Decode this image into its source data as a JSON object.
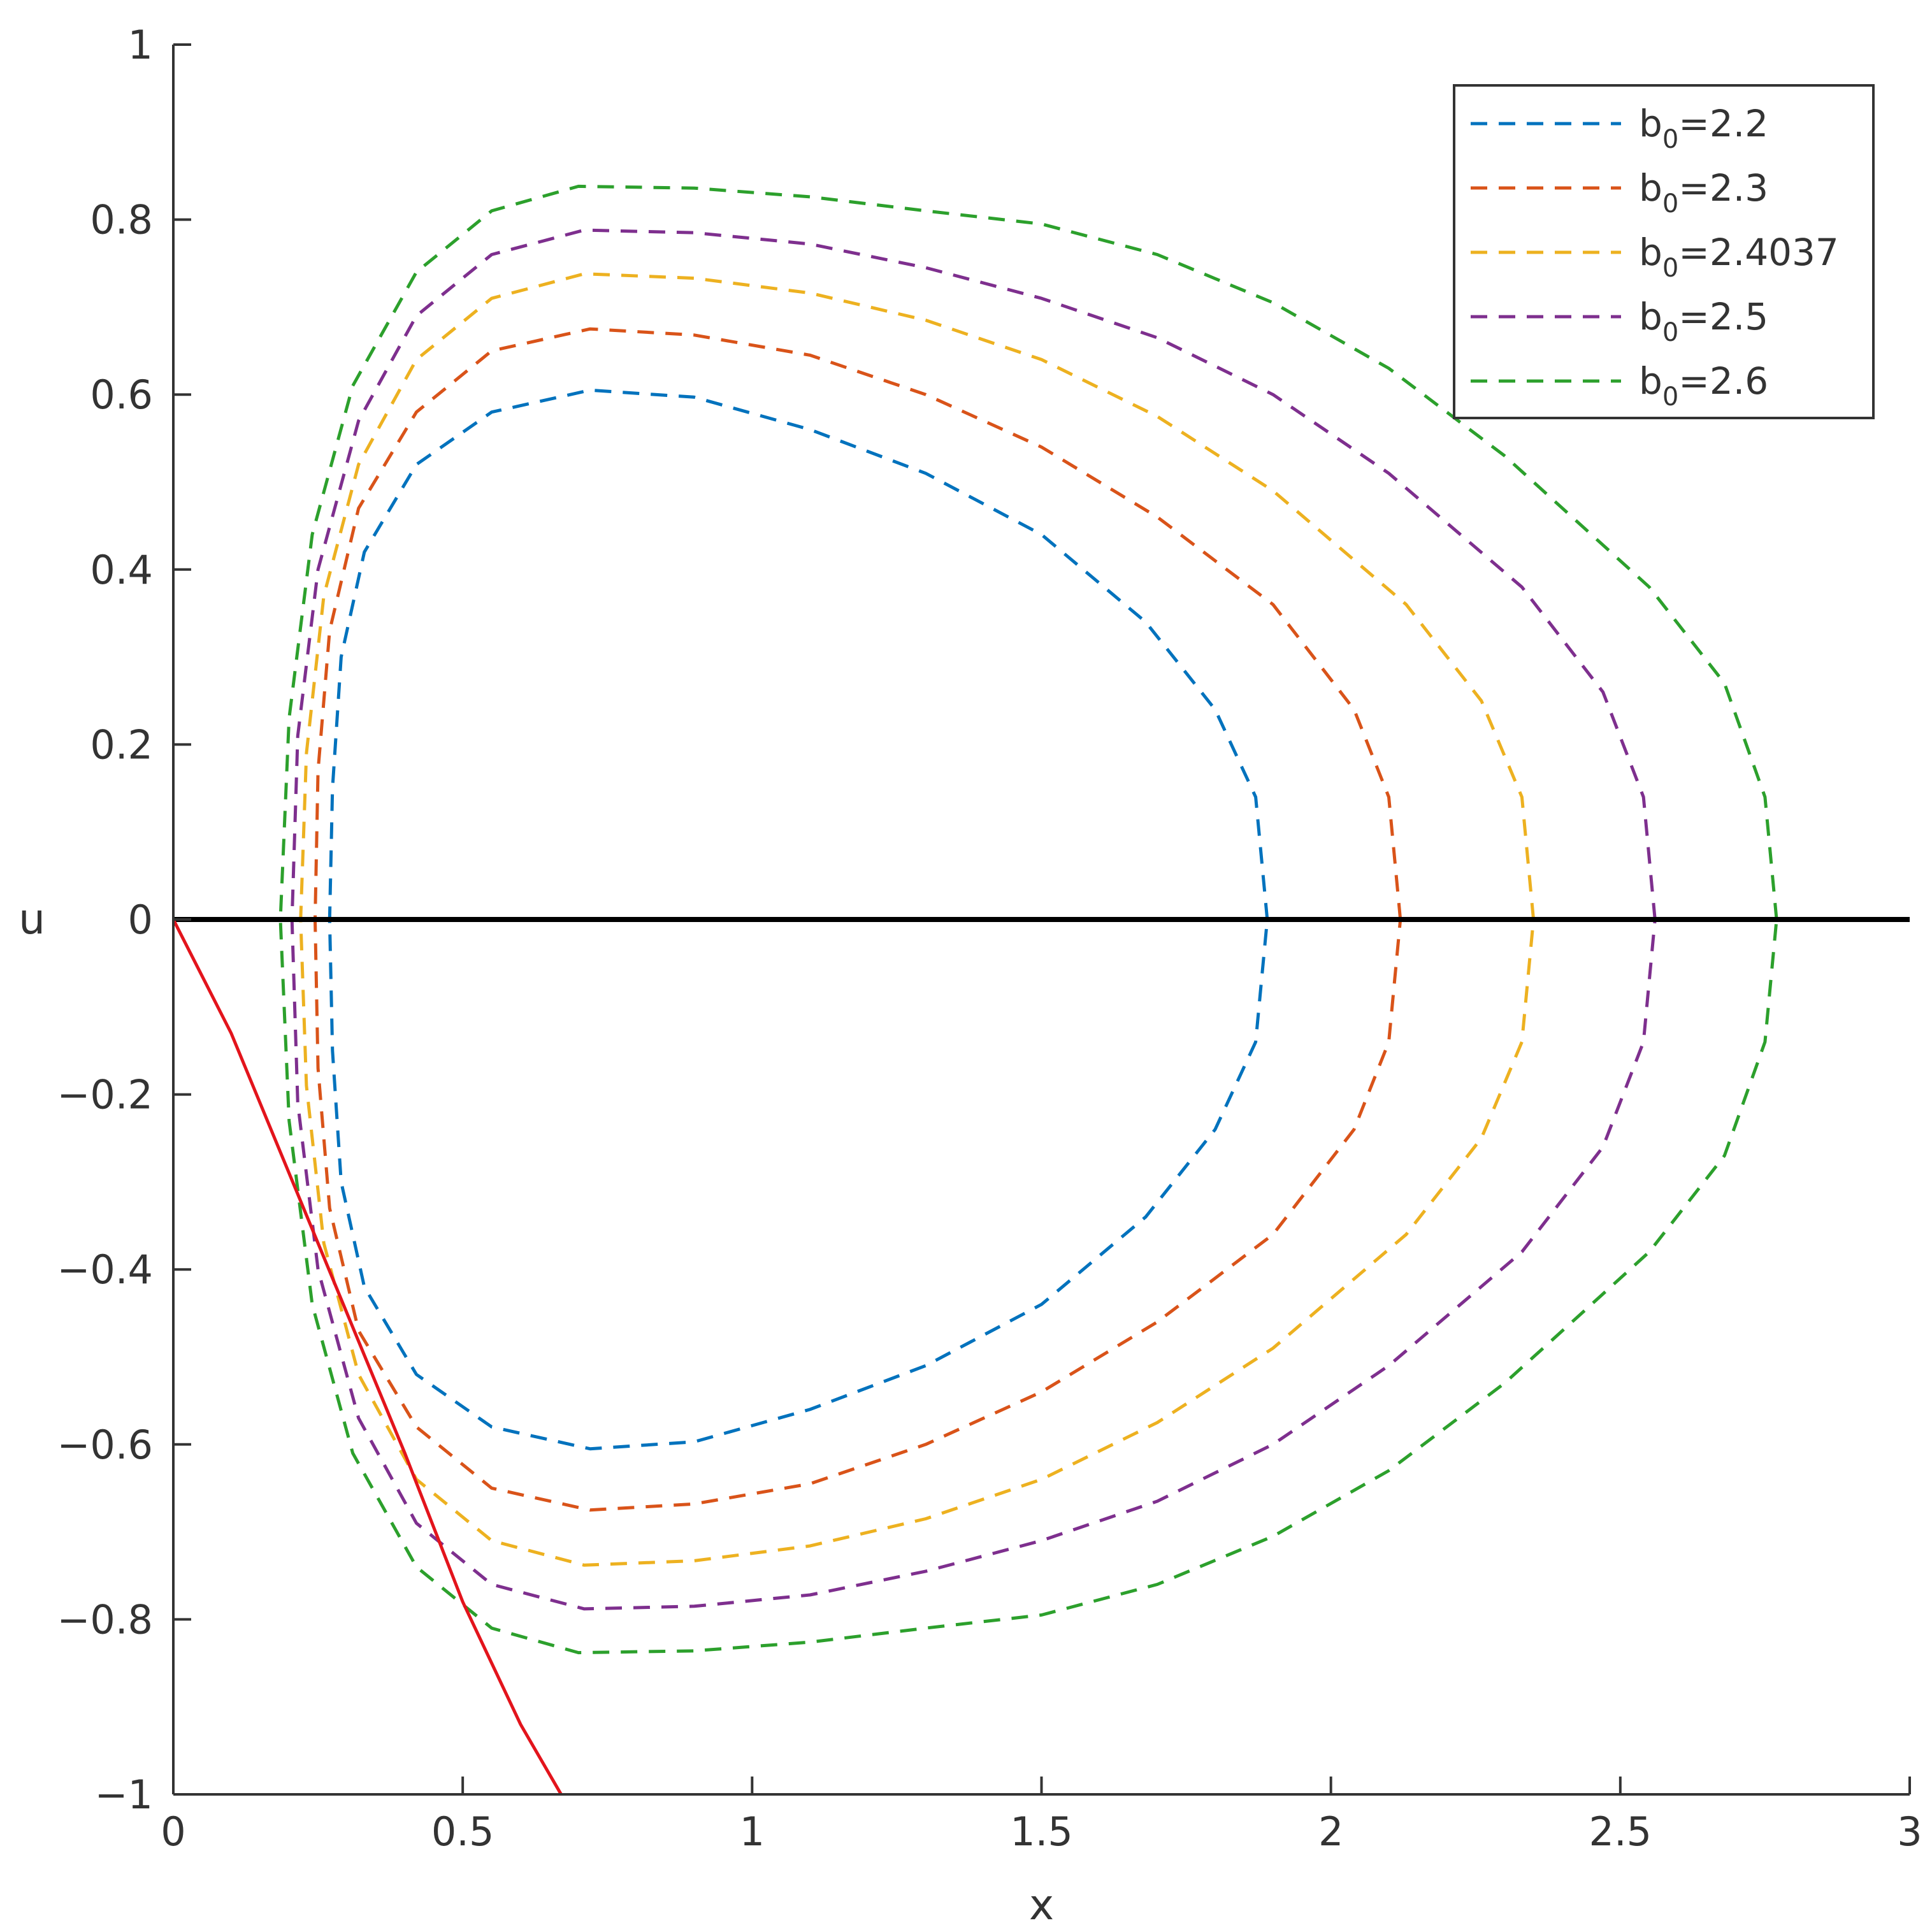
{
  "chart_data": {
    "type": "line",
    "title": "",
    "xlabel": "x",
    "ylabel": "u",
    "xlim": [
      0,
      3
    ],
    "ylim": [
      -1,
      1
    ],
    "x_ticks": [
      "0",
      "0.5",
      "1",
      "1.5",
      "2",
      "2.5",
      "3"
    ],
    "y_ticks": [
      "−1",
      "−0.8",
      "−0.6",
      "−0.4",
      "−0.2",
      "0",
      "0.2",
      "0.4",
      "0.6",
      "0.8",
      "1"
    ],
    "x_tick_values": [
      0,
      0.5,
      1,
      1.5,
      2,
      2.5,
      3
    ],
    "y_tick_values": [
      -1,
      -0.8,
      -0.6,
      -0.4,
      -0.2,
      0,
      0.2,
      0.4,
      0.6,
      0.8,
      1
    ],
    "grid": false,
    "legend_position": "top-right",
    "series": [
      {
        "legend_base": "b",
        "legend_sub": "0",
        "legend_value": "=2.2",
        "color": "#0072BD",
        "style": "dashed",
        "x_min": 0.27,
        "x_max": 1.89,
        "x_at_peak": 0.72,
        "u_peak": 0.605,
        "points": [
          [
            1.89,
            0
          ],
          [
            1.87,
            0.14
          ],
          [
            1.8,
            0.24
          ],
          [
            1.68,
            0.34
          ],
          [
            1.5,
            0.44
          ],
          [
            1.3,
            0.51
          ],
          [
            1.1,
            0.56
          ],
          [
            0.9,
            0.597
          ],
          [
            0.72,
            0.605
          ],
          [
            0.55,
            0.58
          ],
          [
            0.42,
            0.52
          ],
          [
            0.33,
            0.42
          ],
          [
            0.29,
            0.3
          ],
          [
            0.275,
            0.15
          ],
          [
            0.27,
            0
          ],
          [
            0.275,
            -0.15
          ],
          [
            0.29,
            -0.3
          ],
          [
            0.33,
            -0.42
          ],
          [
            0.42,
            -0.52
          ],
          [
            0.55,
            -0.58
          ],
          [
            0.72,
            -0.605
          ],
          [
            0.9,
            -0.597
          ],
          [
            1.1,
            -0.56
          ],
          [
            1.3,
            -0.51
          ],
          [
            1.5,
            -0.44
          ],
          [
            1.68,
            -0.34
          ],
          [
            1.8,
            -0.24
          ],
          [
            1.87,
            -0.14
          ],
          [
            1.89,
            0
          ]
        ]
      },
      {
        "legend_base": "b",
        "legend_sub": "0",
        "legend_value": "=2.3",
        "color": "#D95319",
        "style": "dashed",
        "x_min": 0.245,
        "x_max": 2.12,
        "x_at_peak": 0.72,
        "u_peak": 0.675,
        "points": [
          [
            2.12,
            0
          ],
          [
            2.1,
            0.14
          ],
          [
            2.04,
            0.24
          ],
          [
            1.9,
            0.36
          ],
          [
            1.7,
            0.46
          ],
          [
            1.5,
            0.54
          ],
          [
            1.3,
            0.6
          ],
          [
            1.1,
            0.645
          ],
          [
            0.9,
            0.668
          ],
          [
            0.72,
            0.675
          ],
          [
            0.55,
            0.65
          ],
          [
            0.42,
            0.58
          ],
          [
            0.32,
            0.47
          ],
          [
            0.27,
            0.33
          ],
          [
            0.25,
            0.17
          ],
          [
            0.245,
            0
          ],
          [
            0.25,
            -0.17
          ],
          [
            0.27,
            -0.33
          ],
          [
            0.32,
            -0.47
          ],
          [
            0.42,
            -0.58
          ],
          [
            0.55,
            -0.65
          ],
          [
            0.72,
            -0.675
          ],
          [
            0.9,
            -0.668
          ],
          [
            1.1,
            -0.645
          ],
          [
            1.3,
            -0.6
          ],
          [
            1.5,
            -0.54
          ],
          [
            1.7,
            -0.46
          ],
          [
            1.9,
            -0.36
          ],
          [
            2.04,
            -0.24
          ],
          [
            2.1,
            -0.14
          ],
          [
            2.12,
            0
          ]
        ]
      },
      {
        "legend_base": "b",
        "legend_sub": "0",
        "legend_value": "=2.4037",
        "color": "#EDB120",
        "style": "dashed",
        "x_min": 0.22,
        "x_max": 2.35,
        "x_at_peak": 0.71,
        "u_peak": 0.738,
        "points": [
          [
            2.35,
            0
          ],
          [
            2.33,
            0.14
          ],
          [
            2.26,
            0.25
          ],
          [
            2.13,
            0.36
          ],
          [
            1.9,
            0.49
          ],
          [
            1.7,
            0.575
          ],
          [
            1.5,
            0.64
          ],
          [
            1.3,
            0.685
          ],
          [
            1.1,
            0.716
          ],
          [
            0.9,
            0.733
          ],
          [
            0.71,
            0.738
          ],
          [
            0.55,
            0.71
          ],
          [
            0.42,
            0.64
          ],
          [
            0.32,
            0.52
          ],
          [
            0.26,
            0.37
          ],
          [
            0.23,
            0.19
          ],
          [
            0.22,
            0
          ],
          [
            0.23,
            -0.19
          ],
          [
            0.26,
            -0.37
          ],
          [
            0.32,
            -0.52
          ],
          [
            0.42,
            -0.64
          ],
          [
            0.55,
            -0.71
          ],
          [
            0.71,
            -0.738
          ],
          [
            0.9,
            -0.733
          ],
          [
            1.1,
            -0.716
          ],
          [
            1.3,
            -0.685
          ],
          [
            1.5,
            -0.64
          ],
          [
            1.7,
            -0.575
          ],
          [
            1.9,
            -0.49
          ],
          [
            2.13,
            -0.36
          ],
          [
            2.26,
            -0.25
          ],
          [
            2.33,
            -0.14
          ],
          [
            2.35,
            0
          ]
        ]
      },
      {
        "legend_base": "b",
        "legend_sub": "0",
        "legend_value": "=2.5",
        "color": "#7E2F8E",
        "style": "dashed",
        "x_min": 0.205,
        "x_max": 2.56,
        "x_at_peak": 0.71,
        "u_peak": 0.788,
        "points": [
          [
            2.56,
            0
          ],
          [
            2.54,
            0.14
          ],
          [
            2.47,
            0.26
          ],
          [
            2.33,
            0.38
          ],
          [
            2.1,
            0.51
          ],
          [
            1.9,
            0.6
          ],
          [
            1.7,
            0.665
          ],
          [
            1.5,
            0.71
          ],
          [
            1.3,
            0.745
          ],
          [
            1.1,
            0.772
          ],
          [
            0.9,
            0.785
          ],
          [
            0.71,
            0.788
          ],
          [
            0.55,
            0.76
          ],
          [
            0.42,
            0.69
          ],
          [
            0.32,
            0.57
          ],
          [
            0.25,
            0.4
          ],
          [
            0.215,
            0.21
          ],
          [
            0.205,
            0
          ],
          [
            0.215,
            -0.21
          ],
          [
            0.25,
            -0.4
          ],
          [
            0.32,
            -0.57
          ],
          [
            0.42,
            -0.69
          ],
          [
            0.55,
            -0.76
          ],
          [
            0.71,
            -0.788
          ],
          [
            0.9,
            -0.785
          ],
          [
            1.1,
            -0.772
          ],
          [
            1.3,
            -0.745
          ],
          [
            1.5,
            -0.71
          ],
          [
            1.7,
            -0.665
          ],
          [
            1.9,
            -0.6
          ],
          [
            2.1,
            -0.51
          ],
          [
            2.33,
            -0.38
          ],
          [
            2.47,
            -0.26
          ],
          [
            2.54,
            -0.14
          ],
          [
            2.56,
            0
          ]
        ]
      },
      {
        "legend_base": "b",
        "legend_sub": "0",
        "legend_value": "=2.6",
        "color": "#2CA02C",
        "style": "dashed",
        "x_min": 0.185,
        "x_max": 2.77,
        "x_at_peak": 0.7,
        "u_peak": 0.838,
        "points": [
          [
            2.77,
            0
          ],
          [
            2.75,
            0.14
          ],
          [
            2.68,
            0.27
          ],
          [
            2.55,
            0.38
          ],
          [
            2.3,
            0.53
          ],
          [
            2.1,
            0.63
          ],
          [
            1.9,
            0.705
          ],
          [
            1.7,
            0.76
          ],
          [
            1.5,
            0.795
          ],
          [
            1.3,
            0.81
          ],
          [
            1.1,
            0.826
          ],
          [
            0.9,
            0.836
          ],
          [
            0.7,
            0.838
          ],
          [
            0.55,
            0.81
          ],
          [
            0.42,
            0.74
          ],
          [
            0.31,
            0.61
          ],
          [
            0.24,
            0.44
          ],
          [
            0.2,
            0.23
          ],
          [
            0.185,
            0
          ],
          [
            0.2,
            -0.23
          ],
          [
            0.24,
            -0.44
          ],
          [
            0.31,
            -0.61
          ],
          [
            0.42,
            -0.74
          ],
          [
            0.55,
            -0.81
          ],
          [
            0.7,
            -0.838
          ],
          [
            0.9,
            -0.836
          ],
          [
            1.1,
            -0.826
          ],
          [
            1.3,
            -0.81
          ],
          [
            1.5,
            -0.795
          ],
          [
            1.7,
            -0.76
          ],
          [
            1.9,
            -0.705
          ],
          [
            2.1,
            -0.63
          ],
          [
            2.3,
            -0.53
          ],
          [
            2.55,
            -0.38
          ],
          [
            2.68,
            -0.27
          ],
          [
            2.75,
            -0.14
          ],
          [
            2.77,
            0
          ]
        ]
      }
    ],
    "extra_lines": [
      {
        "color": "#000000",
        "style": "solid",
        "points": [
          [
            0,
            0
          ],
          [
            3,
            0
          ]
        ]
      },
      {
        "color": "#E3141C",
        "style": "solid",
        "points": [
          [
            0,
            0
          ],
          [
            0.1,
            -0.13
          ],
          [
            0.2,
            -0.29
          ],
          [
            0.3,
            -0.45
          ],
          [
            0.4,
            -0.61
          ],
          [
            0.5,
            -0.78
          ],
          [
            0.6,
            -0.92
          ],
          [
            0.67,
            -1.0
          ]
        ]
      }
    ]
  }
}
